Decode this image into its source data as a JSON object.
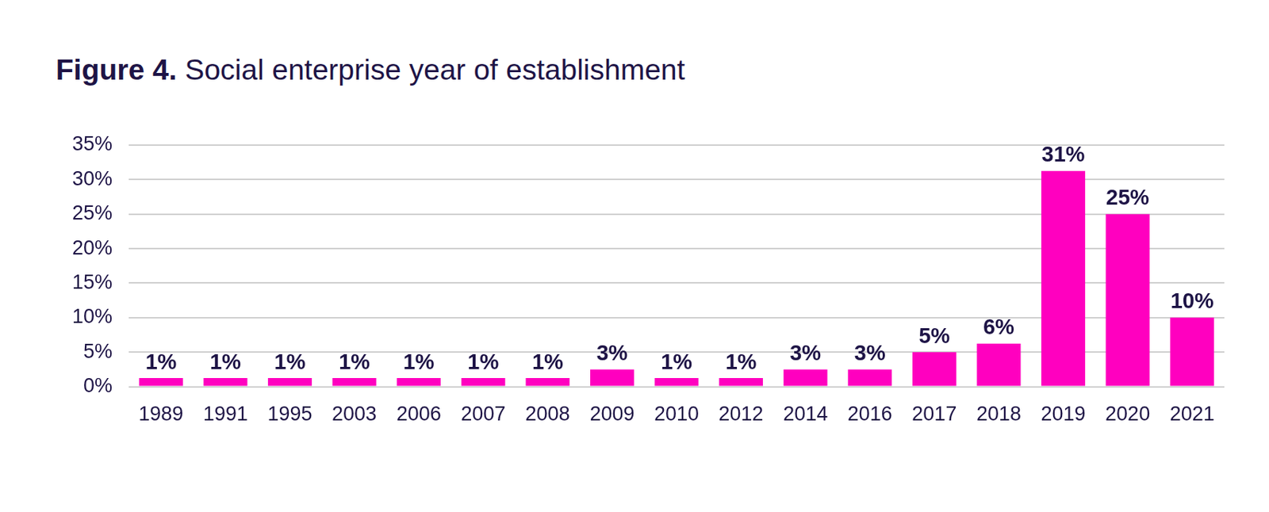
{
  "chart_data": {
    "type": "bar",
    "title": "Figure 4. Social enterprise year of establishment",
    "categories": [
      "1989",
      "1991",
      "1995",
      "2003",
      "2006",
      "2007",
      "2008",
      "2009",
      "2010",
      "2012",
      "2014",
      "2016",
      "2017",
      "2018",
      "2019",
      "2020",
      "2021"
    ],
    "values": [
      1.25,
      1.25,
      1.25,
      1.25,
      1.25,
      1.25,
      1.25,
      2.5,
      1.25,
      1.25,
      2.5,
      2.5,
      5,
      6.25,
      31.25,
      25,
      10
    ],
    "value_labels": [
      "1%",
      "1%",
      "1%",
      "1%",
      "1%",
      "1%",
      "1%",
      "3%",
      "1%",
      "1%",
      "3%",
      "3%",
      "5%",
      "6%",
      "31%",
      "25%",
      "10%"
    ],
    "color": "#ff00bf",
    "ylim": [
      0,
      35
    ],
    "yticks": [
      {
        "value": 0,
        "label": "0%"
      },
      {
        "value": 5,
        "label": "5%"
      },
      {
        "value": 10,
        "label": "10%"
      },
      {
        "value": 15,
        "label": "15%"
      },
      {
        "value": 20,
        "label": "20%"
      },
      {
        "value": 25,
        "label": "25%"
      },
      {
        "value": 30,
        "label": "30%"
      },
      {
        "value": 35,
        "label": "35%"
      }
    ],
    "grid": true,
    "data_labels": true
  }
}
